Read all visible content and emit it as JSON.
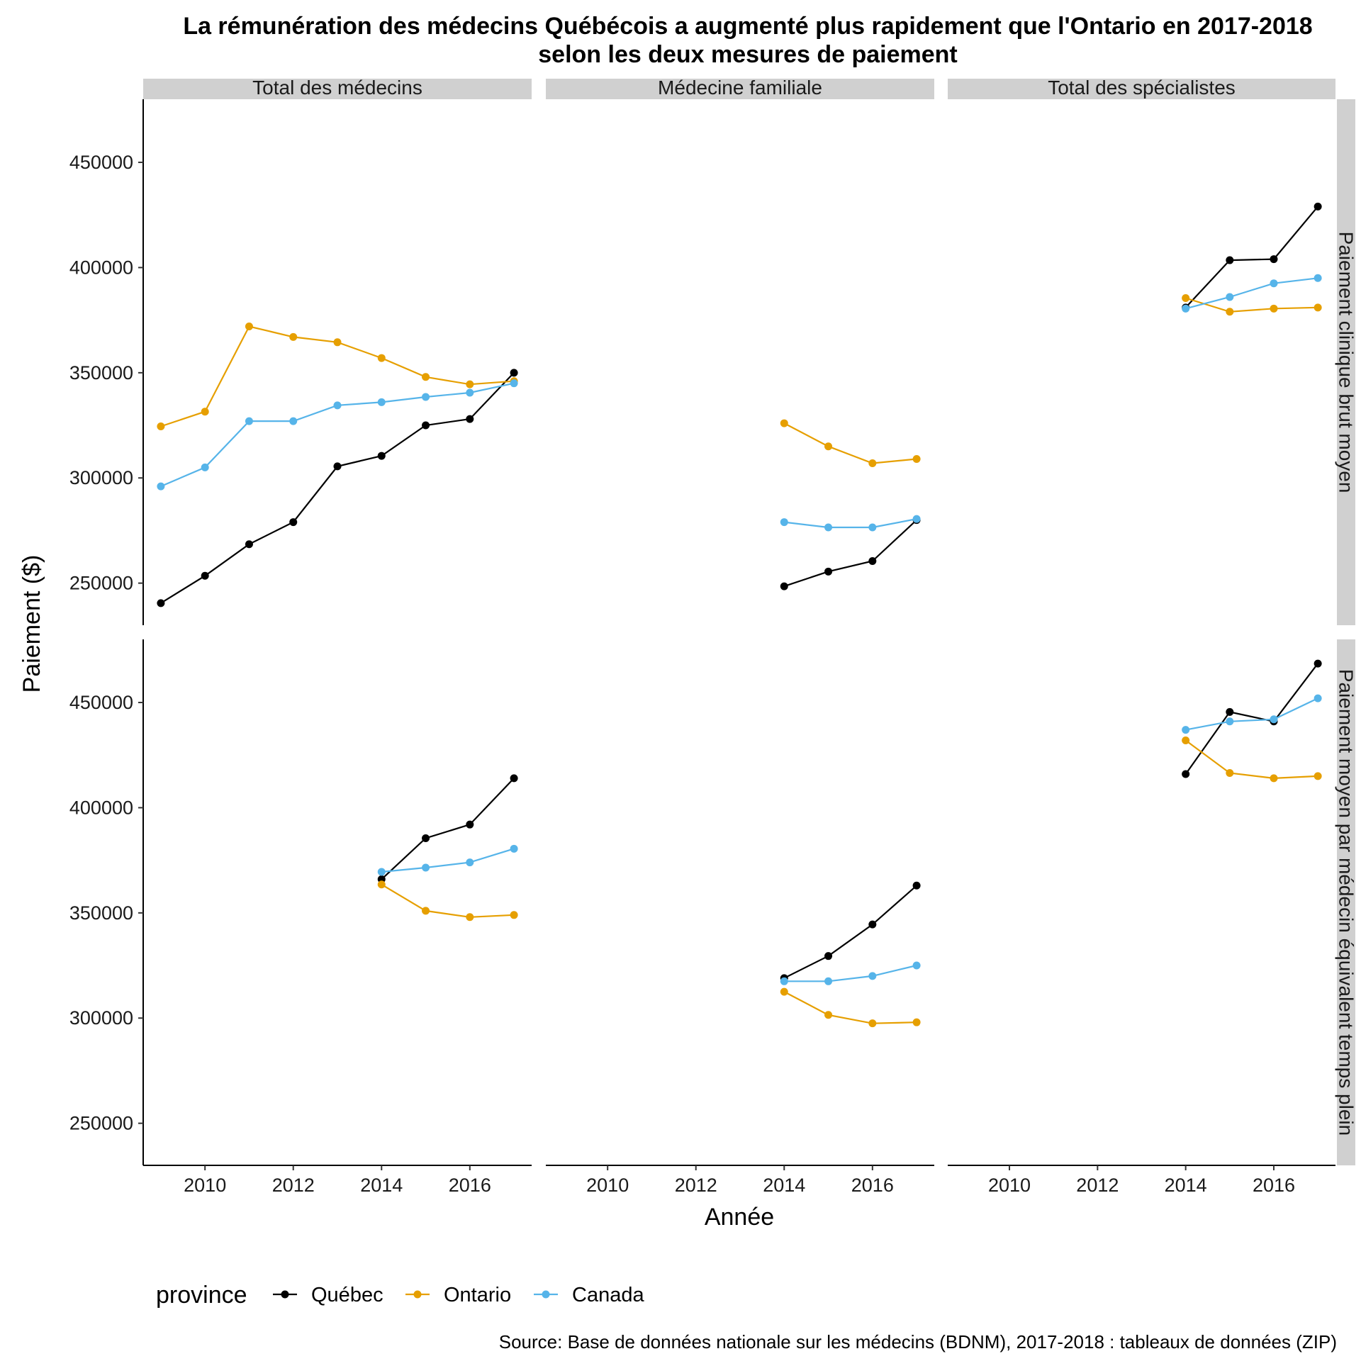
{
  "chart_data": {
    "type": "line",
    "title": "La rémunération des médecins Québécois a augmenté plus rapidement que l'Ontario en 2017-2018",
    "subtitle": "selon les deux mesures de paiement",
    "xlabel": "Année",
    "ylabel": "Paiement ($)",
    "caption": "Source:  Base de données nationale sur les médecins (BDNM), 2017-2018 : tableaux de données (ZIP)",
    "xlim": [
      2008.6,
      2017.4
    ],
    "ylim": [
      230000,
      480000
    ],
    "x_ticks": [
      2010,
      2012,
      2014,
      2016
    ],
    "y_ticks": [
      250000,
      300000,
      350000,
      400000,
      450000
    ],
    "x_tick_labels": [
      "2010",
      "2012",
      "2014",
      "2016"
    ],
    "y_tick_labels": [
      "250000",
      "300000",
      "350000",
      "400000",
      "450000"
    ],
    "columns": [
      "Total des médecins",
      "Médecine familiale",
      "Total des spécialistes"
    ],
    "rows": [
      "Paiement clinique brut moyen",
      "Paiement moyen par médecin équivalent temps plein"
    ],
    "legend": {
      "title": "province",
      "position": "bottom",
      "entries": [
        {
          "name": "Québec",
          "color": "#000000"
        },
        {
          "name": "Ontario",
          "color": "#E69F00"
        },
        {
          "name": "Canada",
          "color": "#56B4E9"
        }
      ]
    },
    "grid": false,
    "panels": [
      {
        "row": 0,
        "col": 0,
        "series": [
          {
            "name": "Québec",
            "x": [
              2009,
              2010,
              2011,
              2012,
              2013,
              2014,
              2015,
              2016,
              2017
            ],
            "y": [
              240500,
              253500,
              268500,
              279000,
              305500,
              310500,
              325000,
              328000,
              350000
            ]
          },
          {
            "name": "Ontario",
            "x": [
              2009,
              2010,
              2011,
              2012,
              2013,
              2014,
              2015,
              2016,
              2017
            ],
            "y": [
              324500,
              331500,
              372000,
              367000,
              364500,
              357000,
              348000,
              344500,
              346000
            ]
          },
          {
            "name": "Canada",
            "x": [
              2009,
              2010,
              2011,
              2012,
              2013,
              2014,
              2015,
              2016,
              2017
            ],
            "y": [
              296000,
              305000,
              327000,
              327000,
              334500,
              336000,
              338500,
              340500,
              345000
            ]
          }
        ]
      },
      {
        "row": 0,
        "col": 1,
        "series": [
          {
            "name": "Québec",
            "x": [
              2014,
              2015,
              2016,
              2017
            ],
            "y": [
              248500,
              255500,
              260500,
              280000
            ]
          },
          {
            "name": "Ontario",
            "x": [
              2014,
              2015,
              2016,
              2017
            ],
            "y": [
              326000,
              315000,
              307000,
              309000
            ]
          },
          {
            "name": "Canada",
            "x": [
              2014,
              2015,
              2016,
              2017
            ],
            "y": [
              279000,
              276500,
              276500,
              280500
            ]
          }
        ]
      },
      {
        "row": 0,
        "col": 2,
        "series": [
          {
            "name": "Québec",
            "x": [
              2014,
              2015,
              2016,
              2017
            ],
            "y": [
              381000,
              403500,
              404000,
              429000
            ]
          },
          {
            "name": "Ontario",
            "x": [
              2014,
              2015,
              2016,
              2017
            ],
            "y": [
              385500,
              379000,
              380500,
              381000
            ]
          },
          {
            "name": "Canada",
            "x": [
              2014,
              2015,
              2016,
              2017
            ],
            "y": [
              380500,
              386000,
              392500,
              395000
            ]
          }
        ]
      },
      {
        "row": 1,
        "col": 0,
        "series": [
          {
            "name": "Québec",
            "x": [
              2014,
              2015,
              2016,
              2017
            ],
            "y": [
              366000,
              385500,
              392000,
              414000
            ]
          },
          {
            "name": "Ontario",
            "x": [
              2014,
              2015,
              2016,
              2017
            ],
            "y": [
              363500,
              351000,
              348000,
              349000
            ]
          },
          {
            "name": "Canada",
            "x": [
              2014,
              2015,
              2016,
              2017
            ],
            "y": [
              369500,
              371500,
              374000,
              380500
            ]
          }
        ]
      },
      {
        "row": 1,
        "col": 1,
        "series": [
          {
            "name": "Québec",
            "x": [
              2014,
              2015,
              2016,
              2017
            ],
            "y": [
              319000,
              329500,
              344500,
              363000
            ]
          },
          {
            "name": "Ontario",
            "x": [
              2014,
              2015,
              2016,
              2017
            ],
            "y": [
              312500,
              301500,
              297500,
              298000
            ]
          },
          {
            "name": "Canada",
            "x": [
              2014,
              2015,
              2016,
              2017
            ],
            "y": [
              317500,
              317500,
              320000,
              325000
            ]
          }
        ]
      },
      {
        "row": 1,
        "col": 2,
        "series": [
          {
            "name": "Québec",
            "x": [
              2014,
              2015,
              2016,
              2017
            ],
            "y": [
              416000,
              445500,
              441000,
              468500
            ]
          },
          {
            "name": "Ontario",
            "x": [
              2014,
              2015,
              2016,
              2017
            ],
            "y": [
              432000,
              416500,
              414000,
              415000
            ]
          },
          {
            "name": "Canada",
            "x": [
              2014,
              2015,
              2016,
              2017
            ],
            "y": [
              437000,
              441000,
              442000,
              452000
            ]
          }
        ]
      }
    ]
  }
}
